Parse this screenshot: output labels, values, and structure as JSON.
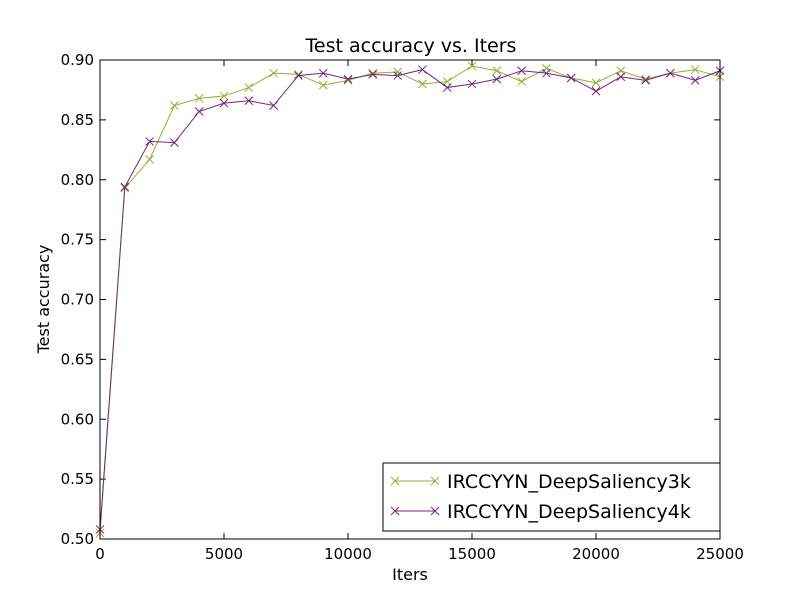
{
  "chart_data": {
    "type": "line",
    "title": "Test accuracy  vs. Iters",
    "xlabel": "Iters",
    "ylabel": "Test accuracy",
    "xlim": [
      0,
      25000
    ],
    "ylim": [
      0.5,
      0.9
    ],
    "xticks": [
      0,
      5000,
      10000,
      15000,
      20000,
      25000
    ],
    "yticks": [
      0.5,
      0.55,
      0.6,
      0.65,
      0.7,
      0.75,
      0.8,
      0.85,
      0.9
    ],
    "xtick_labels": [
      "0",
      "5000",
      "10000",
      "15000",
      "20000",
      "25000"
    ],
    "ytick_labels": [
      "0.50",
      "0.55",
      "0.60",
      "0.65",
      "0.70",
      "0.75",
      "0.80",
      "0.85",
      "0.90"
    ],
    "grid": false,
    "legend_position": "lower-right",
    "marker": "x",
    "x": [
      0,
      1000,
      2000,
      3000,
      4000,
      5000,
      6000,
      7000,
      8000,
      9000,
      10000,
      11000,
      12000,
      13000,
      14000,
      15000,
      16000,
      17000,
      18000,
      19000,
      20000,
      21000,
      22000,
      23000,
      24000,
      25000
    ],
    "series": [
      {
        "name": "IRCCYYN_DeepSaliency3k",
        "color": "#8db32e",
        "values": [
          0.505,
          0.793,
          0.817,
          0.862,
          0.868,
          0.87,
          0.877,
          0.889,
          0.888,
          0.879,
          0.883,
          0.889,
          0.89,
          0.88,
          0.882,
          0.895,
          0.891,
          0.882,
          0.893,
          0.885,
          0.881,
          0.891,
          0.884,
          0.889,
          0.892,
          0.886
        ]
      },
      {
        "name": "IRCCYYN_DeepSaliency4k",
        "color": "#7b237f",
        "values": [
          0.508,
          0.794,
          0.832,
          0.831,
          0.857,
          0.864,
          0.866,
          0.862,
          0.887,
          0.889,
          0.884,
          0.888,
          0.887,
          0.892,
          0.877,
          0.88,
          0.884,
          0.891,
          0.889,
          0.885,
          0.874,
          0.886,
          0.883,
          0.889,
          0.883,
          0.891
        ]
      }
    ]
  }
}
